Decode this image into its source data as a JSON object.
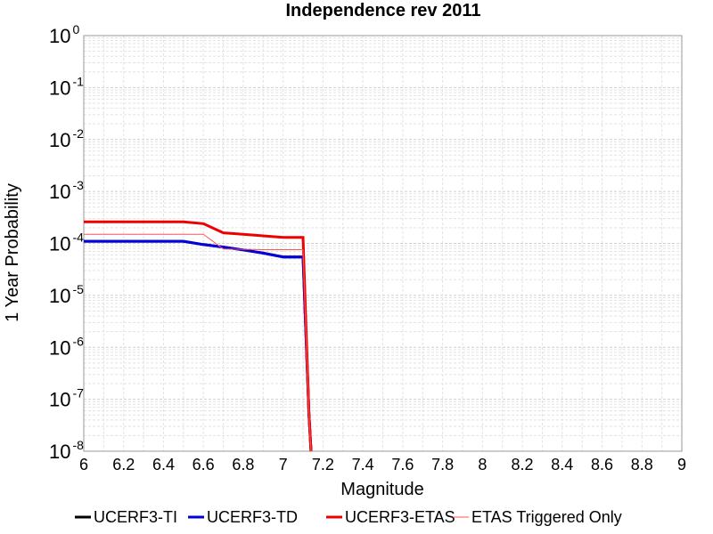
{
  "chart_data": {
    "type": "line",
    "title": "Independence rev 2011",
    "xlabel": "Magnitude",
    "ylabel": "1 Year Probability",
    "xlim": [
      6,
      9
    ],
    "ylim": [
      1e-08,
      1
    ],
    "yscale": "log",
    "grid": true,
    "legend_position": "bottom",
    "x_ticks": [
      "6",
      "6.2",
      "6.4",
      "6.6",
      "6.8",
      "7",
      "7.2",
      "7.4",
      "7.6",
      "7.8",
      "8",
      "8.2",
      "8.4",
      "8.6",
      "8.8",
      "9"
    ],
    "y_ticks": [
      {
        "base": "10",
        "exp": "0"
      },
      {
        "base": "10",
        "exp": "-1"
      },
      {
        "base": "10",
        "exp": "-2"
      },
      {
        "base": "10",
        "exp": "-3"
      },
      {
        "base": "10",
        "exp": "-4"
      },
      {
        "base": "10",
        "exp": "-5"
      },
      {
        "base": "10",
        "exp": "-6"
      },
      {
        "base": "10",
        "exp": "-7"
      },
      {
        "base": "10",
        "exp": "-8"
      }
    ],
    "series": [
      {
        "name": "UCERF3-TI",
        "color": "#000000",
        "width": 3,
        "x": [
          6.0,
          6.5,
          6.6,
          6.7,
          6.8,
          6.9,
          7.0,
          7.1,
          7.13,
          7.14
        ],
        "y": [
          0.00011,
          0.00011,
          9.5e-05,
          8.5e-05,
          7.5e-05,
          6.5e-05,
          5.5e-05,
          5.5e-05,
          5e-08,
          1e-08
        ]
      },
      {
        "name": "UCERF3-TD",
        "color": "#0000dd",
        "width": 3,
        "x": [
          6.0,
          6.5,
          6.6,
          6.7,
          6.8,
          6.9,
          7.0,
          7.1,
          7.13,
          7.14
        ],
        "y": [
          0.00011,
          0.00011,
          9.5e-05,
          8.5e-05,
          7.5e-05,
          6.5e-05,
          5.5e-05,
          5.5e-05,
          5e-08,
          1e-08
        ]
      },
      {
        "name": "UCERF3-ETAS",
        "color": "#ee0000",
        "width": 3,
        "x": [
          6.0,
          6.5,
          6.6,
          6.7,
          6.8,
          6.9,
          7.0,
          7.1,
          7.13,
          7.14
        ],
        "y": [
          0.00026,
          0.00026,
          0.00024,
          0.00016,
          0.00015,
          0.00014,
          0.00013,
          0.00013,
          5e-08,
          1e-08
        ]
      },
      {
        "name": "ETAS Triggered Only",
        "color": "#ff5555",
        "width": 1,
        "x": [
          6.0,
          6.6,
          6.7,
          6.8,
          6.9,
          7.0,
          7.1,
          7.13,
          7.14
        ],
        "y": [
          0.00015,
          0.00015,
          7.8e-05,
          7.7e-05,
          7.6e-05,
          7.6e-05,
          7.6e-05,
          5e-08,
          1e-08
        ]
      }
    ]
  }
}
